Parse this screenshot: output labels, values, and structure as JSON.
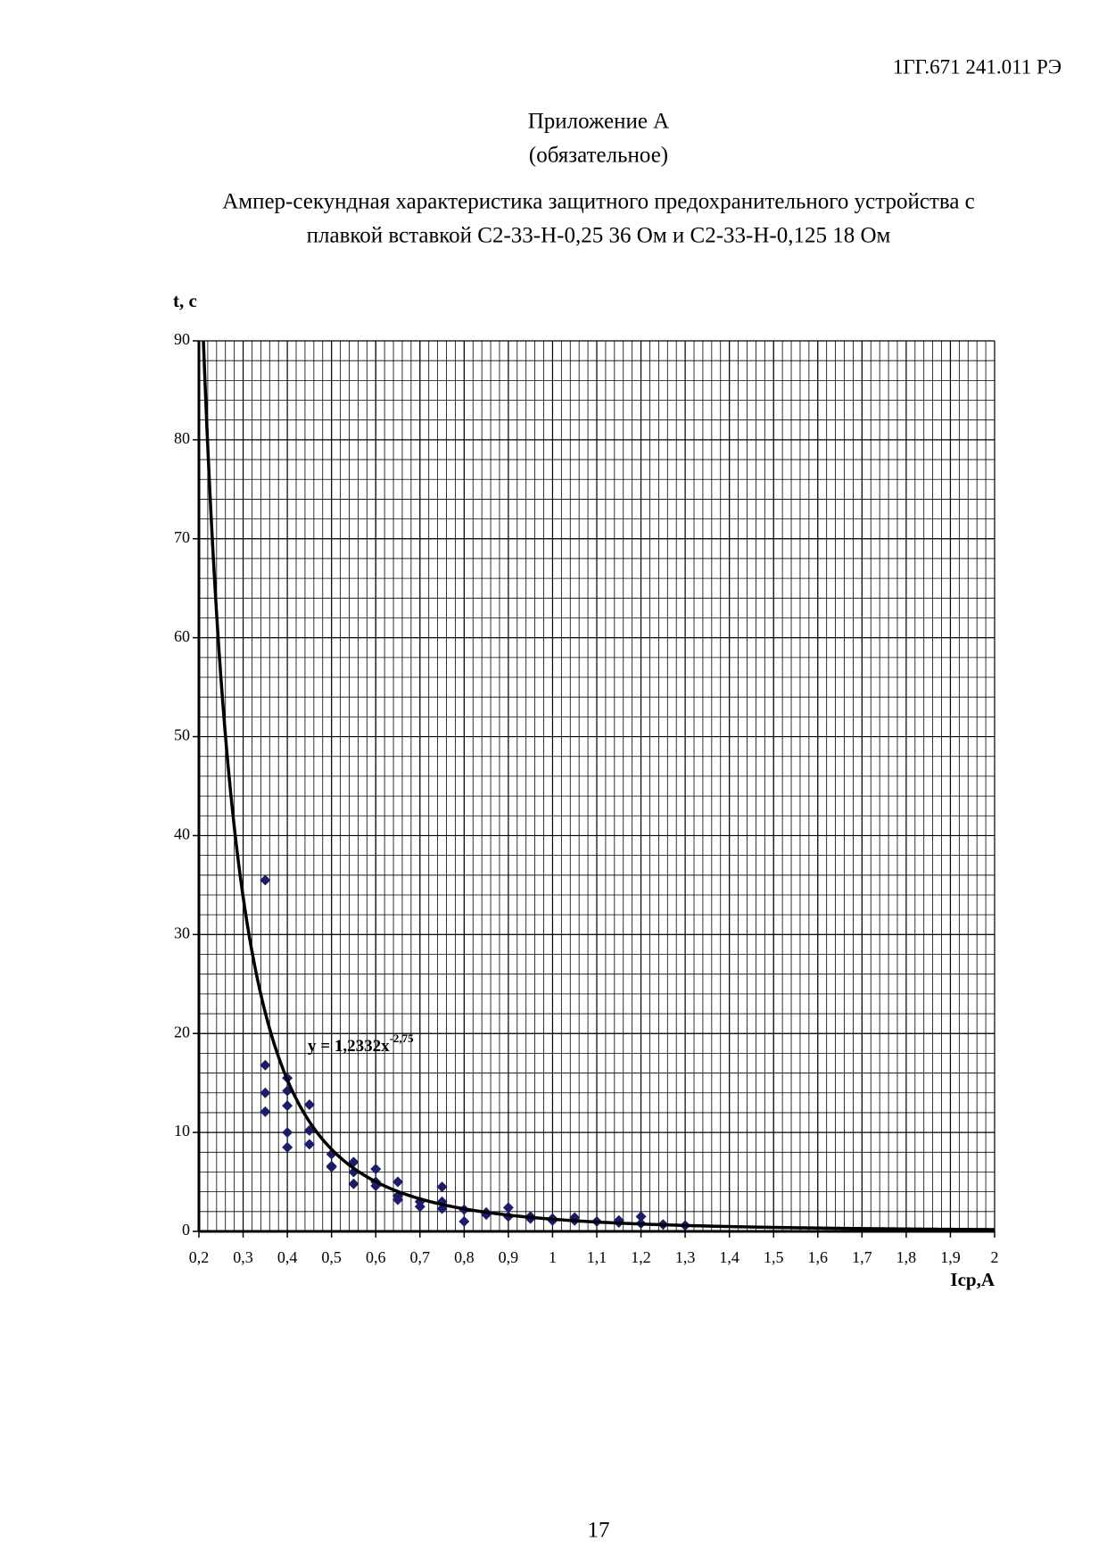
{
  "header": {
    "doc_code": "1ГГ.671 241.011 РЭ"
  },
  "title": "Приложение А",
  "subtitle": "(обязательное)",
  "caption": [
    "Ампер-секундная характеристика защитного предохранительного устройства с",
    "плавкой вставкой С2-33-Н-0,25 36 Ом и С2-33-Н-0,125 18 Ом"
  ],
  "chart_data": {
    "type": "scatter",
    "y_label": "t, c",
    "x_label": "Icp,A",
    "color": "#1c1c6b",
    "x": [
      0.35,
      0.35,
      0.35,
      0.35,
      0.4,
      0.4,
      0.4,
      0.4,
      0.4,
      0.45,
      0.45,
      0.45,
      0.5,
      0.5,
      0.5,
      0.55,
      0.55,
      0.55,
      0.6,
      0.6,
      0.6,
      0.65,
      0.65,
      0.65,
      0.7,
      0.7,
      0.75,
      0.75,
      0.75,
      0.8,
      0.8,
      0.85,
      0.85,
      0.9,
      0.9,
      0.95,
      0.95,
      1,
      1,
      1.05,
      1.05,
      1.1,
      1.15,
      1.15,
      1.2,
      1.2,
      1.25,
      1.3
    ],
    "values": [
      35.5,
      16.8,
      14,
      12.1,
      15.5,
      14.2,
      12.7,
      10,
      8.5,
      12.8,
      10.2,
      8.8,
      7.8,
      6.6,
      6.5,
      7,
      6,
      4.8,
      6.3,
      5,
      4.6,
      5,
      3.6,
      3.2,
      3,
      2.5,
      4.5,
      3,
      2.3,
      2.2,
      1,
      1.9,
      1.7,
      2.4,
      1.5,
      1.5,
      1.3,
      1.3,
      1.1,
      1.4,
      1.1,
      1,
      1.1,
      0.9,
      1.5,
      0.8,
      0.7,
      0.6
    ],
    "trendline": {
      "a": 1.2332,
      "b": -2.75,
      "label": "y = 1,2332x",
      "exponent_label": "-2,75"
    },
    "xlim": [
      0.2,
      2
    ],
    "ylim": [
      0,
      90
    ],
    "xticks": [
      {
        "value": 0.2,
        "label": "0,2"
      },
      {
        "value": 0.3,
        "label": "0,3"
      },
      {
        "value": 0.4,
        "label": "0,4"
      },
      {
        "value": 0.5,
        "label": "0,5"
      },
      {
        "value": 0.6,
        "label": "0,6"
      },
      {
        "value": 0.7,
        "label": "0,7"
      },
      {
        "value": 0.8,
        "label": "0,8"
      },
      {
        "value": 0.9,
        "label": "0,9"
      },
      1,
      {
        "value": 1.1,
        "label": "1,1"
      },
      {
        "value": 1.2,
        "label": "1,2"
      },
      {
        "value": 1.3,
        "label": "1,3"
      },
      {
        "value": 1.4,
        "label": "1,4"
      },
      {
        "value": 1.5,
        "label": "1,5"
      },
      {
        "value": 1.6,
        "label": "1,6"
      },
      {
        "value": 1.7,
        "label": "1,7"
      },
      {
        "value": 1.8,
        "label": "1,8"
      },
      {
        "value": 1.9,
        "label": "1,9"
      },
      2
    ],
    "yticks": [
      0,
      10,
      20,
      30,
      40,
      50,
      60,
      70,
      80,
      90
    ],
    "grid": true,
    "xminor": 0.02,
    "yminor": 2
  },
  "page_number": "17"
}
